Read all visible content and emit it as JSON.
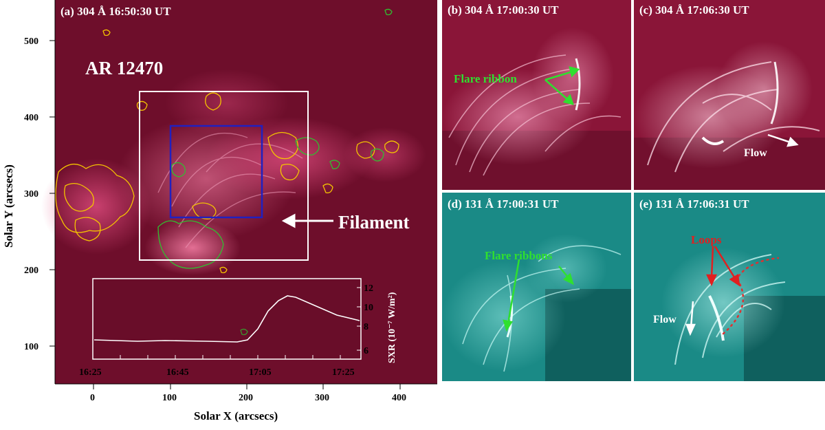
{
  "panel_a": {
    "title": "(a) 304 Å  16:50:30 UT",
    "region_label": "AR 12470",
    "filament_label": "Filament",
    "x_axis_label": "Solar X (arcsecs)",
    "y_axis_label": "Solar Y (arcsecs)",
    "x_ticks": [
      "0",
      "100",
      "200",
      "300",
      "400"
    ],
    "y_ticks": [
      "100",
      "200",
      "300",
      "400",
      "500"
    ],
    "inset": {
      "y_axis_label": "SXR (10⁻⁷ W/m²)",
      "x_ticks": [
        "16:25",
        "16:45",
        "17:05",
        "17:25"
      ],
      "y_ticks": [
        "6",
        "8",
        "10",
        "12"
      ]
    },
    "colors": {
      "background": "#7a1030",
      "white_box": "#ffffff",
      "blue_box": "#2020c0",
      "contour_yellow": "#f5c400",
      "contour_green": "#30c030"
    }
  },
  "panel_b": {
    "title": "(b) 304 Å  17:00:30 UT",
    "annotation": "Flare ribbon"
  },
  "panel_c": {
    "title": "(c) 304 Å  17:06:30 UT",
    "annotation": "Flow"
  },
  "panel_d": {
    "title": "(d) 131 Å  17:00:31 UT",
    "annotation": "Flare ribbons"
  },
  "panel_e": {
    "title": "(e) 131 Å  17:06:31 UT",
    "annotation_loops": "Loops",
    "annotation_flow": "Flow"
  }
}
